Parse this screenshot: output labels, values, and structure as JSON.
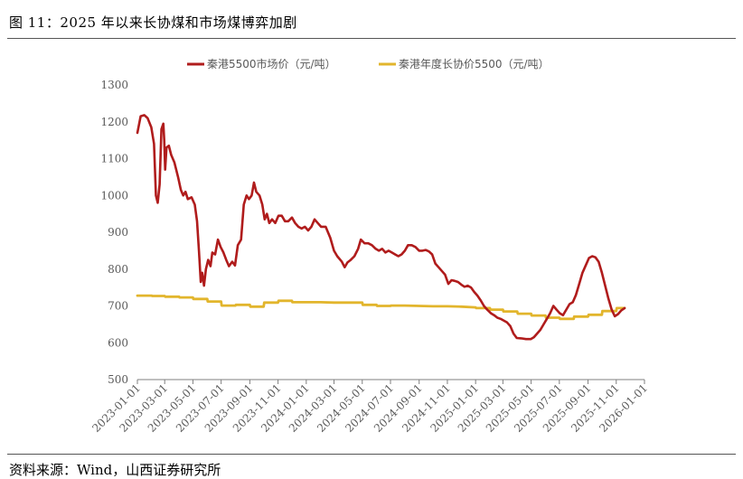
{
  "figure": {
    "title": "图 11：2025 年以来长协煤和市场煤博弈加剧",
    "source": "资料来源：Wind，山西证券研究所"
  },
  "chart_data": {
    "type": "line",
    "title": "",
    "xlabel": "",
    "ylabel": "",
    "ylim": [
      500,
      1300
    ],
    "yticks": [
      500,
      600,
      700,
      800,
      900,
      1000,
      1100,
      1200,
      1300
    ],
    "xlim": [
      "2023-01-01",
      "2026-01-01"
    ],
    "xticks": [
      "2023-01-01",
      "2023-03-01",
      "2023-05-01",
      "2023-07-01",
      "2023-09-01",
      "2023-11-01",
      "2024-01-01",
      "2024-03-01",
      "2024-05-01",
      "2024-07-01",
      "2024-09-01",
      "2024-11-01",
      "2025-01-01",
      "2025-03-01",
      "2025-05-01",
      "2025-07-01",
      "2025-09-01",
      "2025-11-01",
      "2026-01-01"
    ],
    "grid": false,
    "legend": "top",
    "series": [
      {
        "name": "秦港5500市场价（元/吨）",
        "color": "#B01C1C",
        "points": [
          [
            "2023-01-01",
            1170
          ],
          [
            "2023-01-08",
            1215
          ],
          [
            "2023-01-16",
            1218
          ],
          [
            "2023-01-23",
            1210
          ],
          [
            "2023-01-31",
            1185
          ],
          [
            "2023-02-06",
            1140
          ],
          [
            "2023-02-10",
            1000
          ],
          [
            "2023-02-14",
            980
          ],
          [
            "2023-02-18",
            1030
          ],
          [
            "2023-02-22",
            1180
          ],
          [
            "2023-02-26",
            1195
          ],
          [
            "2023-02-28",
            1150
          ],
          [
            "2023-03-02",
            1070
          ],
          [
            "2023-03-05",
            1130
          ],
          [
            "2023-03-10",
            1135
          ],
          [
            "2023-03-15",
            1110
          ],
          [
            "2023-03-22",
            1090
          ],
          [
            "2023-03-30",
            1050
          ],
          [
            "2023-04-05",
            1015
          ],
          [
            "2023-04-10",
            1000
          ],
          [
            "2023-04-15",
            1010
          ],
          [
            "2023-04-20",
            990
          ],
          [
            "2023-04-28",
            995
          ],
          [
            "2023-05-05",
            975
          ],
          [
            "2023-05-10",
            930
          ],
          [
            "2023-05-14",
            850
          ],
          [
            "2023-05-18",
            765
          ],
          [
            "2023-05-21",
            790
          ],
          [
            "2023-05-25",
            755
          ],
          [
            "2023-05-29",
            800
          ],
          [
            "2023-06-03",
            825
          ],
          [
            "2023-06-08",
            808
          ],
          [
            "2023-06-12",
            845
          ],
          [
            "2023-06-18",
            840
          ],
          [
            "2023-06-24",
            880
          ],
          [
            "2023-06-30",
            860
          ],
          [
            "2023-07-06",
            845
          ],
          [
            "2023-07-12",
            825
          ],
          [
            "2023-07-18",
            808
          ],
          [
            "2023-07-25",
            820
          ],
          [
            "2023-07-31",
            810
          ],
          [
            "2023-08-06",
            865
          ],
          [
            "2023-08-13",
            880
          ],
          [
            "2023-08-19",
            975
          ],
          [
            "2023-08-25",
            1000
          ],
          [
            "2023-08-30",
            990
          ],
          [
            "2023-09-05",
            1000
          ],
          [
            "2023-09-10",
            1035
          ],
          [
            "2023-09-15",
            1010
          ],
          [
            "2023-09-22",
            1000
          ],
          [
            "2023-09-28",
            975
          ],
          [
            "2023-10-03",
            935
          ],
          [
            "2023-10-08",
            950
          ],
          [
            "2023-10-13",
            925
          ],
          [
            "2023-10-19",
            935
          ],
          [
            "2023-10-26",
            925
          ],
          [
            "2023-11-02",
            945
          ],
          [
            "2023-11-09",
            945
          ],
          [
            "2023-11-16",
            930
          ],
          [
            "2023-11-23",
            930
          ],
          [
            "2023-12-01",
            940
          ],
          [
            "2023-12-08",
            925
          ],
          [
            "2023-12-15",
            915
          ],
          [
            "2023-12-22",
            910
          ],
          [
            "2023-12-29",
            915
          ],
          [
            "2024-01-05",
            905
          ],
          [
            "2024-01-12",
            915
          ],
          [
            "2024-01-19",
            935
          ],
          [
            "2024-01-26",
            925
          ],
          [
            "2024-02-02",
            915
          ],
          [
            "2024-02-12",
            915
          ],
          [
            "2024-02-22",
            885
          ],
          [
            "2024-03-01",
            850
          ],
          [
            "2024-03-08",
            835
          ],
          [
            "2024-03-18",
            820
          ],
          [
            "2024-03-24",
            805
          ],
          [
            "2024-03-30",
            818
          ],
          [
            "2024-04-06",
            825
          ],
          [
            "2024-04-14",
            835
          ],
          [
            "2024-04-22",
            855
          ],
          [
            "2024-04-28",
            880
          ],
          [
            "2024-05-06",
            870
          ],
          [
            "2024-05-14",
            870
          ],
          [
            "2024-05-22",
            865
          ],
          [
            "2024-05-30",
            855
          ],
          [
            "2024-06-06",
            850
          ],
          [
            "2024-06-13",
            855
          ],
          [
            "2024-06-20",
            845
          ],
          [
            "2024-06-27",
            850
          ],
          [
            "2024-07-04",
            845
          ],
          [
            "2024-07-11",
            840
          ],
          [
            "2024-07-18",
            835
          ],
          [
            "2024-07-25",
            840
          ],
          [
            "2024-08-01",
            850
          ],
          [
            "2024-08-08",
            865
          ],
          [
            "2024-08-16",
            865
          ],
          [
            "2024-08-24",
            860
          ],
          [
            "2024-09-01",
            850
          ],
          [
            "2024-09-08",
            850
          ],
          [
            "2024-09-15",
            852
          ],
          [
            "2024-09-22",
            848
          ],
          [
            "2024-09-29",
            840
          ],
          [
            "2024-10-06",
            815
          ],
          [
            "2024-10-13",
            805
          ],
          [
            "2024-10-20",
            795
          ],
          [
            "2024-10-27",
            785
          ],
          [
            "2024-11-03",
            760
          ],
          [
            "2024-11-10",
            770
          ],
          [
            "2024-11-17",
            768
          ],
          [
            "2024-11-24",
            765
          ],
          [
            "2024-12-01",
            758
          ],
          [
            "2024-12-08",
            752
          ],
          [
            "2024-12-15",
            755
          ],
          [
            "2024-12-22",
            750
          ],
          [
            "2024-12-29",
            738
          ],
          [
            "2025-01-05",
            728
          ],
          [
            "2025-01-12",
            715
          ],
          [
            "2025-01-19",
            700
          ],
          [
            "2025-01-26",
            690
          ],
          [
            "2025-02-03",
            680
          ],
          [
            "2025-02-10",
            675
          ],
          [
            "2025-02-17",
            668
          ],
          [
            "2025-02-24",
            665
          ],
          [
            "2025-03-03",
            660
          ],
          [
            "2025-03-10",
            655
          ],
          [
            "2025-03-17",
            645
          ],
          [
            "2025-03-24",
            625
          ],
          [
            "2025-03-31",
            613
          ],
          [
            "2025-04-10",
            612
          ],
          [
            "2025-04-20",
            610
          ],
          [
            "2025-04-30",
            610
          ],
          [
            "2025-05-07",
            615
          ],
          [
            "2025-05-14",
            625
          ],
          [
            "2025-05-21",
            635
          ],
          [
            "2025-05-28",
            650
          ],
          [
            "2025-06-04",
            665
          ],
          [
            "2025-06-11",
            680
          ],
          [
            "2025-06-18",
            700
          ],
          [
            "2025-06-25",
            690
          ],
          [
            "2025-07-02",
            680
          ],
          [
            "2025-07-09",
            675
          ],
          [
            "2025-07-16",
            690
          ],
          [
            "2025-07-23",
            705
          ],
          [
            "2025-07-30",
            710
          ],
          [
            "2025-08-06",
            730
          ],
          [
            "2025-08-13",
            760
          ],
          [
            "2025-08-20",
            790
          ],
          [
            "2025-08-27",
            810
          ],
          [
            "2025-09-03",
            830
          ],
          [
            "2025-09-10",
            835
          ],
          [
            "2025-09-17",
            832
          ],
          [
            "2025-09-24",
            820
          ],
          [
            "2025-10-01",
            790
          ],
          [
            "2025-10-08",
            755
          ],
          [
            "2025-10-15",
            720
          ],
          [
            "2025-10-22",
            690
          ],
          [
            "2025-10-29",
            672
          ],
          [
            "2025-11-05",
            678
          ],
          [
            "2025-11-12",
            688
          ],
          [
            "2025-11-19",
            694
          ]
        ]
      },
      {
        "name": "秦港年度长协价5500（元/吨）",
        "color": "#E2B52C",
        "points": [
          [
            "2023-01-01",
            728
          ],
          [
            "2023-02-01",
            728
          ],
          [
            "2023-02-02",
            727
          ],
          [
            "2023-03-01",
            727
          ],
          [
            "2023-03-02",
            725
          ],
          [
            "2023-04-01",
            725
          ],
          [
            "2023-04-02",
            723
          ],
          [
            "2023-05-01",
            723
          ],
          [
            "2023-05-02",
            719
          ],
          [
            "2023-06-01",
            719
          ],
          [
            "2023-06-02",
            712
          ],
          [
            "2023-07-01",
            712
          ],
          [
            "2023-07-02",
            701
          ],
          [
            "2023-08-01",
            701
          ],
          [
            "2023-08-02",
            703
          ],
          [
            "2023-09-01",
            703
          ],
          [
            "2023-09-02",
            698
          ],
          [
            "2023-10-01",
            698
          ],
          [
            "2023-10-02",
            709
          ],
          [
            "2023-11-01",
            709
          ],
          [
            "2023-11-02",
            714
          ],
          [
            "2023-12-01",
            714
          ],
          [
            "2023-12-02",
            710
          ],
          [
            "2024-01-01",
            710
          ],
          [
            "2024-02-01",
            710
          ],
          [
            "2024-03-01",
            709
          ],
          [
            "2024-04-01",
            709
          ],
          [
            "2024-05-01",
            709
          ],
          [
            "2024-05-02",
            703
          ],
          [
            "2024-06-01",
            703
          ],
          [
            "2024-06-02",
            700
          ],
          [
            "2024-07-01",
            700
          ],
          [
            "2024-07-02",
            701
          ],
          [
            "2024-08-01",
            701
          ],
          [
            "2024-09-01",
            700
          ],
          [
            "2024-10-01",
            699
          ],
          [
            "2024-11-01",
            699
          ],
          [
            "2024-12-01",
            698
          ],
          [
            "2025-01-01",
            696
          ],
          [
            "2025-01-02",
            694
          ],
          [
            "2025-02-01",
            694
          ],
          [
            "2025-02-02",
            690
          ],
          [
            "2025-03-01",
            690
          ],
          [
            "2025-03-02",
            685
          ],
          [
            "2025-04-01",
            685
          ],
          [
            "2025-04-02",
            679
          ],
          [
            "2025-05-01",
            679
          ],
          [
            "2025-05-02",
            674
          ],
          [
            "2025-06-01",
            674
          ],
          [
            "2025-06-02",
            668
          ],
          [
            "2025-07-01",
            668
          ],
          [
            "2025-07-02",
            665
          ],
          [
            "2025-08-01",
            665
          ],
          [
            "2025-08-02",
            671
          ],
          [
            "2025-09-01",
            671
          ],
          [
            "2025-09-02",
            676
          ],
          [
            "2025-10-01",
            676
          ],
          [
            "2025-10-02",
            686
          ],
          [
            "2025-11-01",
            686
          ],
          [
            "2025-11-02",
            694
          ],
          [
            "2025-11-19",
            694
          ]
        ]
      }
    ]
  }
}
